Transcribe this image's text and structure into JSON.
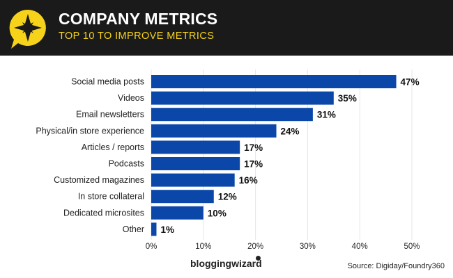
{
  "header": {
    "title": "COMPANY METRICS",
    "subtitle": "TOP 10 TO IMPROVE METRICS"
  },
  "colors": {
    "header_bg": "#1a1a1a",
    "accent": "#f6d31a",
    "bar": "#0b47a8",
    "text": "#222222",
    "grid": "#e6e6e6"
  },
  "chart_data": {
    "type": "bar",
    "orientation": "horizontal",
    "categories": [
      "Social media posts",
      "Videos",
      "Email newsletters",
      "Physical/in store experience",
      "Articles / reports",
      "Podcasts",
      "Customized magazines",
      "In store collateral",
      "Dedicated microsites",
      "Other"
    ],
    "values": [
      47,
      35,
      31,
      24,
      17,
      17,
      16,
      12,
      10,
      1
    ],
    "value_labels": [
      "47%",
      "35%",
      "31%",
      "24%",
      "17%",
      "17%",
      "16%",
      "12%",
      "10%",
      "1%"
    ],
    "xlim": [
      0,
      50
    ],
    "xticks": [
      0,
      10,
      20,
      30,
      40,
      50
    ],
    "xtick_labels": [
      "0%",
      "10%",
      "20%",
      "30%",
      "40%",
      "50%"
    ],
    "grid": true,
    "title": "COMPANY METRICS",
    "subtitle": "TOP 10 TO IMPROVE METRICS"
  },
  "footer": {
    "brand": "bloggingwizard",
    "source": "Source: Digiday/Foundry360"
  }
}
